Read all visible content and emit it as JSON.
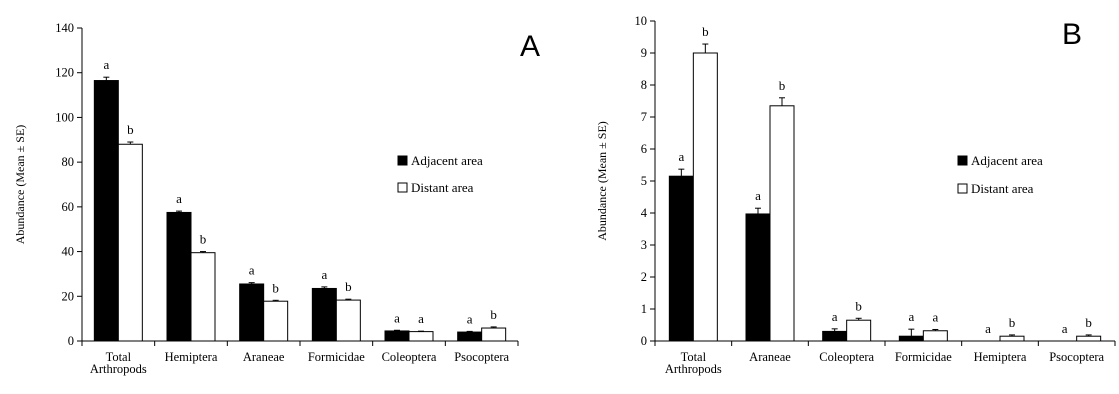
{
  "chart_data": [
    {
      "type": "bar",
      "panel_label": "A",
      "ylabel": "Abundance (Mean ± SE)",
      "ylim": [
        0,
        140
      ],
      "yticks": [
        0,
        20,
        40,
        60,
        80,
        100,
        120,
        140
      ],
      "categories": [
        [
          "Total",
          "Arthropods"
        ],
        [
          "Hemiptera"
        ],
        [
          "Araneae"
        ],
        [
          "Formicidae"
        ],
        [
          "Coleoptera"
        ],
        [
          "Psocoptera"
        ]
      ],
      "series": [
        {
          "name": "Adjacent area",
          "color": "#000000",
          "values": [
            116.5,
            57.5,
            25.5,
            23.5,
            4.5,
            4
          ],
          "errors": [
            1.5,
            0.6,
            0.6,
            0.7,
            0.3,
            0.3
          ],
          "letters": [
            "a",
            "a",
            "a",
            "a",
            "a",
            "a"
          ]
        },
        {
          "name": "Distant area",
          "color": "#ffffff",
          "values": [
            88,
            39.5,
            17.8,
            18.3,
            4.2,
            5.8
          ],
          "errors": [
            1,
            0.5,
            0.4,
            0.4,
            0.2,
            0.5
          ],
          "letters": [
            "b",
            "b",
            "b",
            "b",
            "a",
            "b"
          ]
        }
      ],
      "legend_position": "center-right",
      "grid": false
    },
    {
      "type": "bar",
      "panel_label": "B",
      "ylabel": "Abundance (Mean ± SE)",
      "ylim": [
        0,
        10
      ],
      "yticks": [
        0,
        1,
        2,
        3,
        4,
        5,
        6,
        7,
        8,
        9,
        10
      ],
      "categories": [
        [
          "Total",
          "Arthropods"
        ],
        [
          "Araneae"
        ],
        [
          "Coleoptera"
        ],
        [
          "Formicidae"
        ],
        [
          "Hemiptera"
        ],
        [
          "Psocoptera"
        ]
      ],
      "series": [
        {
          "name": "Adjacent area",
          "color": "#000000",
          "values": [
            5.15,
            3.97,
            0.3,
            0.15,
            0,
            0
          ],
          "errors": [
            0.22,
            0.18,
            0.08,
            0.22,
            0,
            0
          ],
          "letters": [
            "a",
            "a",
            "a",
            "a",
            "a",
            "a"
          ]
        },
        {
          "name": "Distant area",
          "color": "#ffffff",
          "values": [
            9.0,
            7.35,
            0.65,
            0.32,
            0.15,
            0.15
          ],
          "errors": [
            0.28,
            0.25,
            0.06,
            0.04,
            0.04,
            0.04
          ],
          "letters": [
            "b",
            "b",
            "b",
            "a",
            "b",
            "b"
          ]
        }
      ],
      "legend_position": "center-right",
      "grid": false
    }
  ]
}
